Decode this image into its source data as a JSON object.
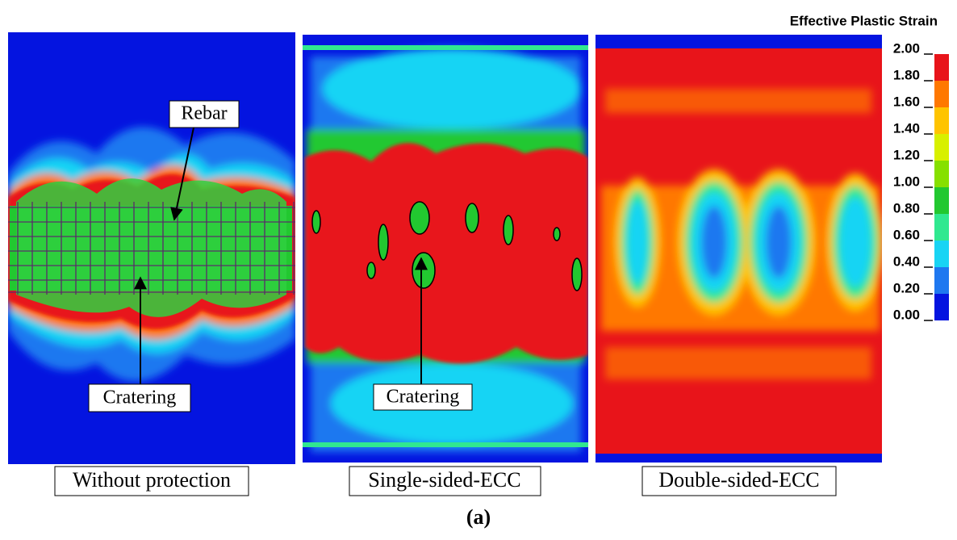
{
  "panels": [
    {
      "caption": "Without protection",
      "annotations": [
        "Rebar",
        "Cratering"
      ]
    },
    {
      "caption": "Single-sided-ECC",
      "annotations": [
        "Cratering"
      ]
    },
    {
      "caption": "Double-sided-ECC",
      "annotations": []
    }
  ],
  "colorbar": {
    "title": "Effective Plastic Strain",
    "labels": [
      "2.00",
      "1.80",
      "1.60",
      "1.40",
      "1.20",
      "1.00",
      "0.80",
      "0.60",
      "0.40",
      "0.20",
      "0.00"
    ],
    "colors": [
      "#e8141a",
      "#ff7800",
      "#ffc400",
      "#d8f000",
      "#86e000",
      "#22c830",
      "#30e890",
      "#18d4f4",
      "#1e78f0",
      "#0414e0"
    ]
  },
  "figure_label": "(a)"
}
